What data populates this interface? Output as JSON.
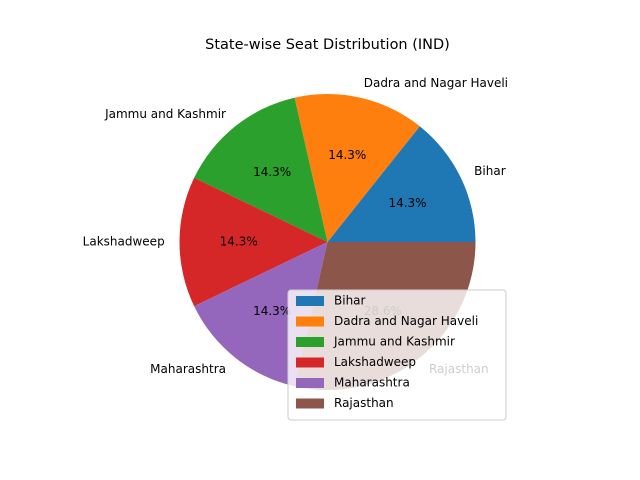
{
  "chart_data": {
    "type": "pie",
    "title": "State-wise Seat Distribution (IND)",
    "categories": [
      "Bihar",
      "Dadra and Nagar Haveli",
      "Jammu and Kashmir",
      "Lakshadweep",
      "Maharashtra",
      "Rajasthan"
    ],
    "values": [
      1,
      1,
      1,
      1,
      1,
      2
    ],
    "percent_labels": [
      "14.3%",
      "14.3%",
      "14.3%",
      "14.3%",
      "14.3%",
      "28.6%"
    ],
    "colors": [
      "#1f77b4",
      "#ff7f0e",
      "#2ca02c",
      "#d62728",
      "#9467bd",
      "#8c564b"
    ],
    "legend": {
      "placement": "lower-right",
      "entries": [
        "Bihar",
        "Dadra and Nagar Haveli",
        "Jammu and Kashmir",
        "Lakshadweep",
        "Maharashtra",
        "Rajasthan"
      ]
    }
  }
}
